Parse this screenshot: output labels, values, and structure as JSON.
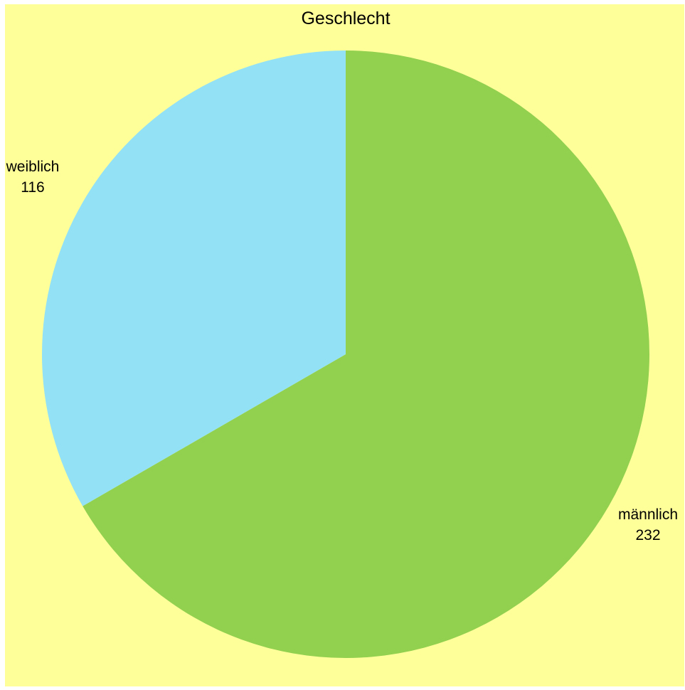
{
  "chart_data": {
    "type": "pie",
    "title": "Geschlecht",
    "categories": [
      "männlich",
      "weiblich"
    ],
    "values": [
      232,
      116
    ],
    "colors": [
      "#92d050",
      "#93e1f5"
    ],
    "background": "#ffff99",
    "legend": "none",
    "data_labels": "category name and value"
  }
}
